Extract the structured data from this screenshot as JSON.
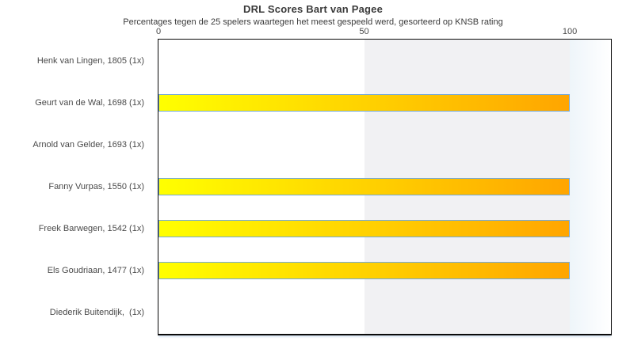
{
  "title": "DRL Scores Bart van Pagee",
  "subtitle": "Percentages tegen de 25 spelers waartegen het meest gespeeld werd, gesorteerd op KNSB rating",
  "chart_data": {
    "type": "bar",
    "orientation": "horizontal",
    "categories": [
      "Henk van Lingen, 1805 (1x)",
      "Geurt van de Wal, 1698 (1x)",
      "Arnold van Gelder, 1693 (1x)",
      "Fanny Vurpas, 1550 (1x)",
      "Freek Barwegen, 1542 (1x)",
      "Els Goudriaan, 1477 (1x)",
      "Diederik Buitendijk,  (1x)"
    ],
    "values": [
      0,
      100,
      0,
      100,
      100,
      100,
      0
    ],
    "x_tick_labels": [
      "0",
      "50",
      "100"
    ],
    "x_tick_values": [
      0,
      50,
      100
    ],
    "xlim": [
      0,
      110
    ],
    "shaded_band": [
      50,
      100
    ],
    "grid": false,
    "legend": null,
    "xlabel": "",
    "ylabel": "",
    "colors": {
      "bar_gradient_start": "#ffff00",
      "bar_gradient_end": "#ffa500",
      "bar_border": "#74a9d8",
      "band_50_100": "#f1f1f3",
      "band_beyond_100_start": "#eef5fa",
      "band_beyond_100_end": "#ffffff",
      "plot_border": "#0a0a0a",
      "text": "#3b3b3b"
    }
  }
}
